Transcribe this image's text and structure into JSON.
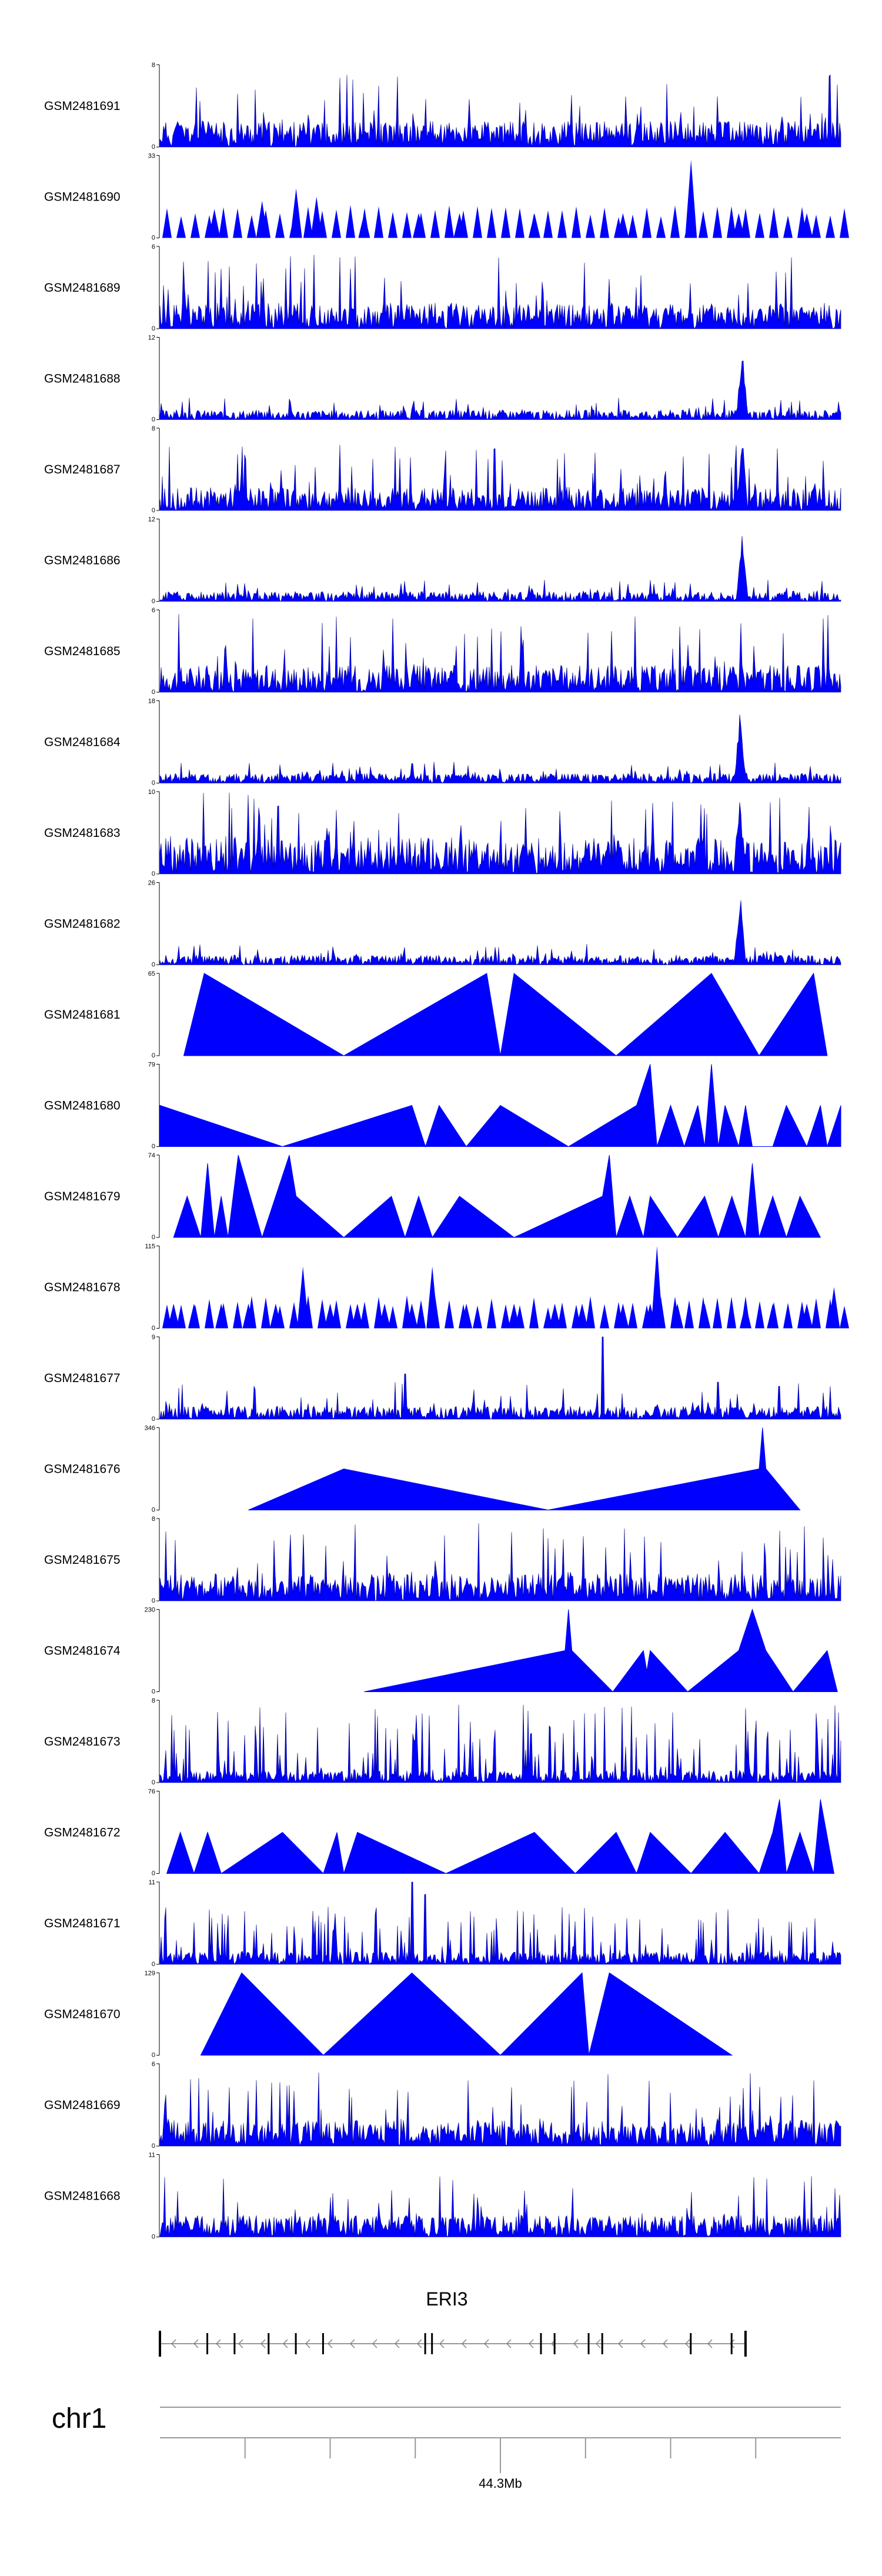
{
  "chart_data": {
    "type": "area",
    "title": "",
    "style": {
      "fill_color": "#0000ff",
      "line_color": "#000080",
      "axis_color": "#000000"
    },
    "tracks": [
      {
        "name": "GSM2481691",
        "ymin": 0,
        "ymax": 8,
        "pattern": "dense",
        "max_frac": 0.9,
        "seed": 11
      },
      {
        "name": "GSM2481690",
        "ymin": 0,
        "ymax": 33,
        "pattern": "sparse",
        "peaks": [
          [
            0.01,
            0.0
          ],
          [
            0.08,
            0.35
          ],
          [
            0.15,
            0.45
          ],
          [
            0.2,
            0.6
          ],
          [
            0.23,
            0.5
          ],
          [
            0.3,
            0.3
          ],
          [
            0.38,
            0.3
          ],
          [
            0.44,
            0.3
          ],
          [
            0.55,
            0.3
          ],
          [
            0.68,
            0.3
          ],
          [
            0.78,
            0.95
          ],
          [
            0.85,
            0.3
          ],
          [
            0.95,
            0.3
          ]
        ],
        "seed": 12
      },
      {
        "name": "GSM2481689",
        "ymin": 0,
        "ymax": 6,
        "pattern": "dense",
        "max_frac": 0.9,
        "seed": 13
      },
      {
        "name": "GSM2481688",
        "ymin": 0,
        "ymax": 12,
        "pattern": "spike",
        "spike_at": 0.855,
        "spike_frac": 0.95,
        "seed": 14
      },
      {
        "name": "GSM2481687",
        "ymin": 0,
        "ymax": 8,
        "pattern": "dense",
        "max_frac": 0.8,
        "spike_at": 0.855,
        "spike_frac": 0.95,
        "seed": 15
      },
      {
        "name": "GSM2481686",
        "ymin": 0,
        "ymax": 12,
        "pattern": "spike",
        "spike_at": 0.855,
        "spike_frac": 0.95,
        "seed": 16
      },
      {
        "name": "GSM2481685",
        "ymin": 0,
        "ymax": 6,
        "pattern": "dense",
        "max_frac": 0.95,
        "seed": 17
      },
      {
        "name": "GSM2481684",
        "ymin": 0,
        "ymax": 18,
        "pattern": "spike",
        "spike_at": 0.852,
        "spike_frac": 0.95,
        "seed": 18
      },
      {
        "name": "GSM2481683",
        "ymin": 0,
        "ymax": 10,
        "pattern": "spike",
        "spike_at": 0.852,
        "spike_frac": 0.95,
        "base_frac": 0.45,
        "seed": 19
      },
      {
        "name": "GSM2481682",
        "ymin": 0,
        "ymax": 26,
        "pattern": "spike",
        "spike_at": 0.852,
        "spike_frac": 0.95,
        "seed": 20
      },
      {
        "name": "GSM2481681",
        "ymin": 0,
        "ymax": 65,
        "pattern": "triangles",
        "points": [
          [
            0.035,
            0
          ],
          [
            0.065,
            1
          ],
          [
            0.27,
            0
          ],
          [
            0.48,
            1
          ],
          [
            0.5,
            0
          ],
          [
            0.52,
            1
          ],
          [
            0.67,
            0
          ],
          [
            0.81,
            1
          ],
          [
            0.88,
            0
          ],
          [
            0.96,
            1
          ],
          [
            0.98,
            0
          ]
        ]
      },
      {
        "name": "GSM2481680",
        "ymin": 0,
        "ymax": 79,
        "pattern": "triangles",
        "points": [
          [
            0,
            0.5
          ],
          [
            0.0,
            0.5
          ],
          [
            0.18,
            0
          ],
          [
            0.37,
            0.5
          ],
          [
            0.39,
            0
          ],
          [
            0.41,
            0.5
          ],
          [
            0.45,
            0
          ],
          [
            0.5,
            0.5
          ],
          [
            0.6,
            0
          ],
          [
            0.7,
            0.5
          ],
          [
            0.72,
            1
          ],
          [
            0.73,
            0
          ],
          [
            0.75,
            0.5
          ],
          [
            0.77,
            0
          ],
          [
            0.79,
            0.5
          ],
          [
            0.8,
            0
          ],
          [
            0.81,
            1
          ],
          [
            0.82,
            0
          ],
          [
            0.83,
            0.5
          ],
          [
            0.85,
            0
          ],
          [
            0.86,
            0.5
          ],
          [
            0.87,
            0
          ],
          [
            0.9,
            0
          ],
          [
            0.92,
            0.5
          ],
          [
            0.95,
            0
          ],
          [
            0.97,
            0.5
          ],
          [
            0.98,
            0
          ],
          [
            1.0,
            0.5
          ]
        ]
      },
      {
        "name": "GSM2481679",
        "ymin": 0,
        "ymax": 74,
        "pattern": "triangles",
        "points": [
          [
            0.02,
            0
          ],
          [
            0.04,
            0.5
          ],
          [
            0.06,
            0
          ],
          [
            0.07,
            0.9
          ],
          [
            0.08,
            0
          ],
          [
            0.09,
            0.5
          ],
          [
            0.1,
            0
          ],
          [
            0.115,
            1.0
          ],
          [
            0.15,
            0
          ],
          [
            0.19,
            1.0
          ],
          [
            0.2,
            0.5
          ],
          [
            0.27,
            0
          ],
          [
            0.34,
            0.5
          ],
          [
            0.36,
            0
          ],
          [
            0.38,
            0.5
          ],
          [
            0.4,
            0
          ],
          [
            0.44,
            0.5
          ],
          [
            0.52,
            0
          ],
          [
            0.65,
            0.5
          ],
          [
            0.66,
            1.0
          ],
          [
            0.67,
            0
          ],
          [
            0.69,
            0.5
          ],
          [
            0.71,
            0
          ],
          [
            0.72,
            0.5
          ],
          [
            0.76,
            0
          ],
          [
            0.8,
            0.5
          ],
          [
            0.82,
            0
          ],
          [
            0.84,
            0.5
          ],
          [
            0.86,
            0
          ],
          [
            0.87,
            0.9
          ],
          [
            0.88,
            0
          ],
          [
            0.9,
            0.5
          ],
          [
            0.92,
            0
          ],
          [
            0.94,
            0.5
          ],
          [
            0.97,
            0
          ]
        ]
      },
      {
        "name": "GSM2481678",
        "ymin": 0,
        "ymax": 115,
        "pattern": "sparse",
        "peaks": [
          [
            0.02,
            0.3
          ],
          [
            0.05,
            0.3
          ],
          [
            0.09,
            0.3
          ],
          [
            0.13,
            0.3
          ],
          [
            0.17,
            0.3
          ],
          [
            0.21,
            0.75
          ],
          [
            0.25,
            0.3
          ],
          [
            0.29,
            0.3
          ],
          [
            0.33,
            0.3
          ],
          [
            0.37,
            0.3
          ],
          [
            0.4,
            0.75
          ],
          [
            0.45,
            0.3
          ],
          [
            0.52,
            0.3
          ],
          [
            0.58,
            0.3
          ],
          [
            0.62,
            0.3
          ],
          [
            0.68,
            0.3
          ],
          [
            0.72,
            0.3
          ],
          [
            0.73,
            1.0
          ],
          [
            0.76,
            0.3
          ],
          [
            0.8,
            0.3
          ],
          [
            0.86,
            0.3
          ],
          [
            0.9,
            0.3
          ],
          [
            0.95,
            0.3
          ],
          [
            0.99,
            0.5
          ]
        ],
        "seed": 21
      },
      {
        "name": "GSM2481677",
        "ymin": 0,
        "ymax": 9,
        "pattern": "dense",
        "max_frac": 0.45,
        "spikes": [
          [
            0.36,
            0.55
          ],
          [
            0.65,
            1.0
          ],
          [
            0.82,
            0.45
          ],
          [
            0.91,
            0.4
          ]
        ],
        "seed": 22
      },
      {
        "name": "GSM2481676",
        "ymin": 0,
        "ymax": 346,
        "pattern": "triangles",
        "points": [
          [
            0.13,
            0
          ],
          [
            0.27,
            0.5
          ],
          [
            0.57,
            0
          ],
          [
            0.88,
            0.5
          ],
          [
            0.885,
            1.0
          ],
          [
            0.89,
            0.5
          ],
          [
            0.94,
            0
          ]
        ]
      },
      {
        "name": "GSM2481675",
        "ymin": 0,
        "ymax": 8,
        "pattern": "dense",
        "max_frac": 0.95,
        "seed": 23
      },
      {
        "name": "GSM2481674",
        "ymin": 0,
        "ymax": 230,
        "pattern": "triangles",
        "points": [
          [
            0.3,
            0
          ],
          [
            0.595,
            0.5
          ],
          [
            0.6,
            1.0
          ],
          [
            0.605,
            0.5
          ],
          [
            0.665,
            0
          ],
          [
            0.71,
            0.5
          ],
          [
            0.715,
            0.25
          ],
          [
            0.72,
            0.5
          ],
          [
            0.775,
            0
          ],
          [
            0.85,
            0.5
          ],
          [
            0.87,
            1.0
          ],
          [
            0.89,
            0.5
          ],
          [
            0.93,
            0
          ],
          [
            0.98,
            0.5
          ],
          [
            0.995,
            0
          ]
        ]
      },
      {
        "name": "GSM2481673",
        "ymin": 0,
        "ymax": 8,
        "pattern": "spiky",
        "max_frac": 0.95,
        "seed": 24
      },
      {
        "name": "GSM2481672",
        "ymin": 0,
        "ymax": 76,
        "pattern": "triangles",
        "points": [
          [
            0.01,
            0
          ],
          [
            0.03,
            0.5
          ],
          [
            0.05,
            0
          ],
          [
            0.07,
            0.5
          ],
          [
            0.09,
            0
          ],
          [
            0.18,
            0.5
          ],
          [
            0.24,
            0
          ],
          [
            0.26,
            0.5
          ],
          [
            0.27,
            0
          ],
          [
            0.29,
            0.5
          ],
          [
            0.42,
            0
          ],
          [
            0.55,
            0.5
          ],
          [
            0.61,
            0
          ],
          [
            0.67,
            0.5
          ],
          [
            0.7,
            0
          ],
          [
            0.72,
            0.5
          ],
          [
            0.78,
            0
          ],
          [
            0.83,
            0.5
          ],
          [
            0.88,
            0
          ],
          [
            0.9,
            0.5
          ],
          [
            0.91,
            0.9
          ],
          [
            0.92,
            0
          ],
          [
            0.94,
            0.5
          ],
          [
            0.96,
            0
          ],
          [
            0.97,
            0.9
          ],
          [
            0.99,
            0
          ]
        ]
      },
      {
        "name": "GSM2481671",
        "ymin": 0,
        "ymax": 11,
        "pattern": "spiky",
        "max_frac": 0.7,
        "spikes": [
          [
            0.37,
            1.0
          ],
          [
            0.39,
            0.85
          ]
        ],
        "seed": 25
      },
      {
        "name": "GSM2481670",
        "ymin": 0,
        "ymax": 129,
        "pattern": "triangles",
        "points": [
          [
            0.06,
            0
          ],
          [
            0.12,
            1.0
          ],
          [
            0.24,
            0
          ],
          [
            0.37,
            1.0
          ],
          [
            0.5,
            0
          ],
          [
            0.62,
            1.0
          ],
          [
            0.63,
            0
          ],
          [
            0.66,
            1.0
          ],
          [
            0.84,
            0
          ]
        ]
      },
      {
        "name": "GSM2481669",
        "ymin": 0,
        "ymax": 6,
        "pattern": "dense",
        "max_frac": 0.9,
        "seed": 26
      },
      {
        "name": "GSM2481668",
        "ymin": 0,
        "ymax": 11,
        "pattern": "dense",
        "max_frac": 0.75,
        "seed": 27
      }
    ],
    "gene_track": {
      "gene": "ERI3",
      "exons": [
        0.0,
        0.07,
        0.11,
        0.16,
        0.2,
        0.24,
        0.39,
        0.4,
        0.56,
        0.58,
        0.63,
        0.65,
        0.78,
        0.84,
        0.86
      ],
      "strand": "-",
      "start": 0.0,
      "end": 0.86
    },
    "axis": {
      "chromosome": "chr1",
      "position_label": "44.3Mb",
      "position_at": 0.5,
      "tick_count": 8
    }
  }
}
